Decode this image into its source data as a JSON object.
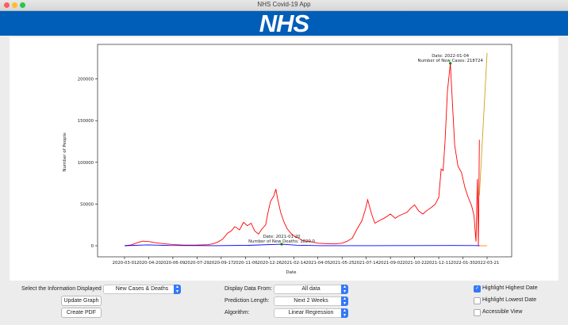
{
  "window": {
    "title": "NHS Covid-19 App"
  },
  "banner": {
    "logo_text": "NHS",
    "color": "#005eb8"
  },
  "chart_data": {
    "type": "line",
    "xlabel": "Date",
    "ylabel": "Number of People",
    "ylim": [
      0,
      230000
    ],
    "y_ticks": [
      0,
      50000,
      100000,
      150000,
      200000
    ],
    "x_tick_labels": [
      "2020-03-01",
      "2020-04-20",
      "2020-06-09",
      "2020-07-29",
      "2020-09-17",
      "2020-11-06",
      "2020-12-26",
      "2021-02-14",
      "2021-04-05",
      "2021-05-25",
      "2021-07-14",
      "2021-09-02",
      "2021-10-22",
      "2021-12-11",
      "2022-01-30",
      "2022-03-21"
    ],
    "series": [
      {
        "color": "#ff0000",
        "points": [
          [
            "2020-03-01",
            0
          ],
          [
            "2020-03-15",
            1000
          ],
          [
            "2020-03-29",
            4000
          ],
          [
            "2020-04-08",
            5500
          ],
          [
            "2020-04-20",
            5000
          ],
          [
            "2020-05-05",
            3500
          ],
          [
            "2020-05-20",
            2500
          ],
          [
            "2020-06-09",
            1500
          ],
          [
            "2020-07-01",
            800
          ],
          [
            "2020-07-29",
            900
          ],
          [
            "2020-08-20",
            1200
          ],
          [
            "2020-09-01",
            2500
          ],
          [
            "2020-09-10",
            4500
          ],
          [
            "2020-09-20",
            8000
          ],
          [
            "2020-09-30",
            15000
          ],
          [
            "2020-10-08",
            18000
          ],
          [
            "2020-10-15",
            23000
          ],
          [
            "2020-10-25",
            19000
          ],
          [
            "2020-11-02",
            28000
          ],
          [
            "2020-11-10",
            24000
          ],
          [
            "2020-11-18",
            27000
          ],
          [
            "2020-11-25",
            18000
          ],
          [
            "2020-12-03",
            14000
          ],
          [
            "2020-12-10",
            20000
          ],
          [
            "2020-12-18",
            25000
          ],
          [
            "2020-12-22",
            38000
          ],
          [
            "2020-12-28",
            53000
          ],
          [
            "2021-01-04",
            60000
          ],
          [
            "2021-01-08",
            68000
          ],
          [
            "2021-01-12",
            55000
          ],
          [
            "2021-01-18",
            40000
          ],
          [
            "2021-01-25",
            28000
          ],
          [
            "2021-02-01",
            20000
          ],
          [
            "2021-02-08",
            15000
          ],
          [
            "2021-02-14",
            12000
          ],
          [
            "2021-02-24",
            9000
          ],
          [
            "2021-03-05",
            6000
          ],
          [
            "2021-03-20",
            5000
          ],
          [
            "2021-04-05",
            3000
          ],
          [
            "2021-04-25",
            2500
          ],
          [
            "2021-05-10",
            2200
          ],
          [
            "2021-05-25",
            3000
          ],
          [
            "2021-06-05",
            5500
          ],
          [
            "2021-06-15",
            9000
          ],
          [
            "2021-06-25",
            20000
          ],
          [
            "2021-07-05",
            30000
          ],
          [
            "2021-07-12",
            43000
          ],
          [
            "2021-07-17",
            55000
          ],
          [
            "2021-07-25",
            38000
          ],
          [
            "2021-08-01",
            27000
          ],
          [
            "2021-08-10",
            30000
          ],
          [
            "2021-08-20",
            33000
          ],
          [
            "2021-08-28",
            36000
          ],
          [
            "2021-09-02",
            38000
          ],
          [
            "2021-09-12",
            33000
          ],
          [
            "2021-09-20",
            36000
          ],
          [
            "2021-09-28",
            38000
          ],
          [
            "2021-10-06",
            40000
          ],
          [
            "2021-10-14",
            45000
          ],
          [
            "2021-10-22",
            49000
          ],
          [
            "2021-10-30",
            42000
          ],
          [
            "2021-11-08",
            38000
          ],
          [
            "2021-11-18",
            43000
          ],
          [
            "2021-11-26",
            46000
          ],
          [
            "2021-12-04",
            50000
          ],
          [
            "2021-12-11",
            58000
          ],
          [
            "2021-12-16",
            92000
          ],
          [
            "2021-12-20",
            90000
          ],
          [
            "2021-12-24",
            125000
          ],
          [
            "2021-12-29",
            185000
          ],
          [
            "2022-01-04",
            218724
          ],
          [
            "2022-01-08",
            175000
          ],
          [
            "2022-01-13",
            120000
          ],
          [
            "2022-01-20",
            95000
          ],
          [
            "2022-01-27",
            88000
          ],
          [
            "2022-02-03",
            70000
          ],
          [
            "2022-02-10",
            58000
          ],
          [
            "2022-02-17",
            48000
          ],
          [
            "2022-02-22",
            36000
          ],
          [
            "2022-02-26",
            5000
          ],
          [
            "2022-03-01",
            80000
          ],
          [
            "2022-03-03",
            0
          ],
          [
            "2022-03-05",
            127000
          ]
        ]
      },
      {
        "color": "#0000ff",
        "points": [
          [
            "2020-03-01",
            0
          ],
          [
            "2020-04-10",
            900
          ],
          [
            "2020-04-20",
            1000
          ],
          [
            "2020-06-01",
            300
          ],
          [
            "2020-09-01",
            50
          ],
          [
            "2020-11-10",
            500
          ],
          [
            "2021-01-20",
            1820
          ],
          [
            "2021-02-20",
            700
          ],
          [
            "2021-04-10",
            50
          ],
          [
            "2021-07-14",
            100
          ],
          [
            "2021-10-22",
            150
          ],
          [
            "2022-01-10",
            250
          ],
          [
            "2022-02-26",
            200
          ],
          [
            "2022-03-06",
            0
          ]
        ]
      },
      {
        "color": "#d4a017",
        "points": [
          [
            "2022-03-05",
            60000
          ],
          [
            "2022-03-21",
            231000
          ]
        ]
      },
      {
        "color": "#ff8c00",
        "points": [
          [
            "2022-03-05",
            0
          ],
          [
            "2022-03-21",
            0
          ]
        ]
      }
    ],
    "annotations": [
      {
        "date_label": "Date:  2022-01-04",
        "value_label": "Number of New Cases:  218724",
        "x": "2022-01-04",
        "y": 218724,
        "marker_color": "#008000"
      },
      {
        "date_label": "Date:  2021-01-20",
        "value_label": "Number of New Deaths:  1820.0",
        "x": "2021-01-20",
        "y": 1820,
        "marker_color": "#008000"
      }
    ]
  },
  "controls": {
    "info_label": "Select the Information Displayed",
    "info_value": "New Cases & Deaths",
    "update_button": "Update Graph",
    "pdf_button": "Create PDF",
    "display_from_label": "Display Data From:",
    "display_from_value": "All data",
    "prediction_label": "Prediction Length:",
    "prediction_value": "Next 2 Weeks",
    "algorithm_label": "Algorithm:",
    "algorithm_value": "Linear Regression",
    "highlight_highest_label": "Highlight Highest Date",
    "highlight_highest_checked": true,
    "highlight_lowest_label": "Highlight Lowest Date",
    "highlight_lowest_checked": false,
    "accessible_label": "Accessible View",
    "accessible_checked": false
  }
}
